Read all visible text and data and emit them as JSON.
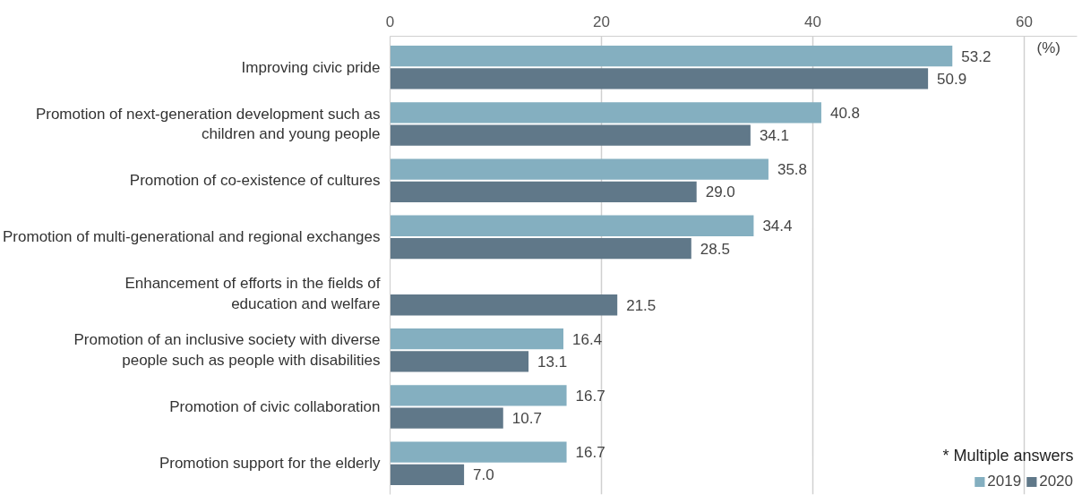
{
  "chart_data": {
    "type": "bar",
    "orientation": "horizontal",
    "categories": [
      "Improving civic pride",
      "Promotion of next-generation development such as\nchildren and young people",
      "Promotion of co-existence of cultures",
      "Promotion of multi-generational and regional exchanges",
      "Enhancement of efforts in the fields of\neducation and welfare",
      "Promotion of an inclusive society with diverse\npeople such as people with disabilities",
      "Promotion of civic collaboration",
      "Promotion support for the elderly"
    ],
    "series": [
      {
        "name": "2019",
        "color": "#84afc0",
        "values": [
          53.2,
          40.8,
          35.8,
          34.4,
          null,
          16.4,
          16.7,
          16.7
        ]
      },
      {
        "name": "2020",
        "color": "#607889",
        "values": [
          50.9,
          34.1,
          29.0,
          28.5,
          21.5,
          13.1,
          10.7,
          7.0
        ]
      }
    ],
    "value_labels": [
      [
        "53.2",
        "40.8",
        "35.8",
        "34.4",
        null,
        "16.4",
        "16.7",
        "16.7"
      ],
      [
        "50.9",
        "34.1",
        "29.0",
        "28.5",
        "21.5",
        "13.1",
        "10.7",
        "7.0"
      ]
    ],
    "xlim": [
      0,
      65
    ],
    "xticks": [
      0,
      20,
      40,
      60
    ],
    "xlabel": "(%)",
    "grid": "x",
    "legend": "bottom right",
    "annotations": [
      "* Multiple answers"
    ]
  }
}
